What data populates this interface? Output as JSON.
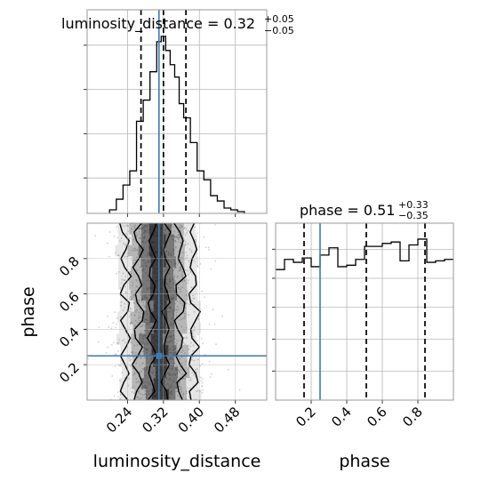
{
  "chart_data": {
    "type": "corner",
    "parameters": [
      "luminosity_distance",
      "phase"
    ],
    "colors": {
      "truth": "#3a7bb3",
      "hist": "#000000",
      "quantile": "#000000",
      "grid": "#b8b8b8",
      "frame": "#999999",
      "samples": "#9a9a9a"
    },
    "grid": true,
    "truth": {
      "luminosity_distance": 0.31,
      "phase": 0.25
    },
    "panels": [
      {
        "id": "luminosity_distance_hist",
        "type": "histogram",
        "parameter": "luminosity_distance",
        "title_main": "luminosity_distance = 0.32",
        "title_sup": "+0.05",
        "title_sub": "−0.05",
        "xlim": [
          0.15,
          0.55
        ],
        "ylim": [
          0,
          1.0
        ],
        "bin_edges": [
          0.2,
          0.215,
          0.23,
          0.245,
          0.26,
          0.275,
          0.29,
          0.305,
          0.315,
          0.325,
          0.335,
          0.345,
          0.355,
          0.365,
          0.38,
          0.395,
          0.41,
          0.425,
          0.44,
          0.455,
          0.47,
          0.485,
          0.5
        ],
        "heights": [
          0.02,
          0.08,
          0.16,
          0.24,
          0.52,
          0.64,
          0.8,
          0.97,
          1.0,
          0.92,
          0.84,
          0.77,
          0.62,
          0.54,
          0.4,
          0.24,
          0.19,
          0.1,
          0.07,
          0.03,
          0.02,
          0.01
        ],
        "quantiles": [
          0.27,
          0.32,
          0.37
        ]
      },
      {
        "id": "phase_hist",
        "type": "histogram",
        "parameter": "phase",
        "title_main": "phase = 0.51",
        "title_sup": "+0.33",
        "title_sub": "−0.35",
        "xlim": [
          0.0,
          1.0
        ],
        "ylim": [
          0,
          1.22
        ],
        "bin_edges": [
          0.0,
          0.05,
          0.1,
          0.15,
          0.2,
          0.25,
          0.3,
          0.35,
          0.4,
          0.45,
          0.5,
          0.55,
          0.6,
          0.65,
          0.7,
          0.75,
          0.8,
          0.85,
          0.9,
          0.95,
          1.0
        ],
        "heights": [
          0.9,
          0.97,
          0.95,
          0.98,
          0.92,
          1.0,
          1.05,
          0.92,
          0.93,
          0.97,
          1.06,
          1.06,
          1.08,
          1.09,
          0.96,
          1.07,
          1.11,
          0.95,
          0.96,
          0.97
        ],
        "quantiles": [
          0.16,
          0.51,
          0.84
        ]
      },
      {
        "id": "phase_vs_luminosity_distance",
        "type": "2d-density",
        "x_param": "luminosity_distance",
        "y_param": "phase",
        "xlim": [
          0.15,
          0.55
        ],
        "ylim": [
          0.0,
          1.0
        ],
        "density_band": {
          "center": 0.31,
          "width": 0.045
        },
        "contour_levels": 3
      }
    ],
    "x_ticks": {
      "luminosity_distance": [
        "0.24",
        "0.32",
        "0.40",
        "0.48"
      ],
      "phase": [
        "0.2",
        "0.4",
        "0.6",
        "0.8"
      ]
    },
    "y_ticks": {
      "phase": [
        "0.2",
        "0.4",
        "0.6",
        "0.8"
      ]
    },
    "xlabels": [
      "luminosity_distance",
      "phase"
    ],
    "ylabel": "phase"
  }
}
